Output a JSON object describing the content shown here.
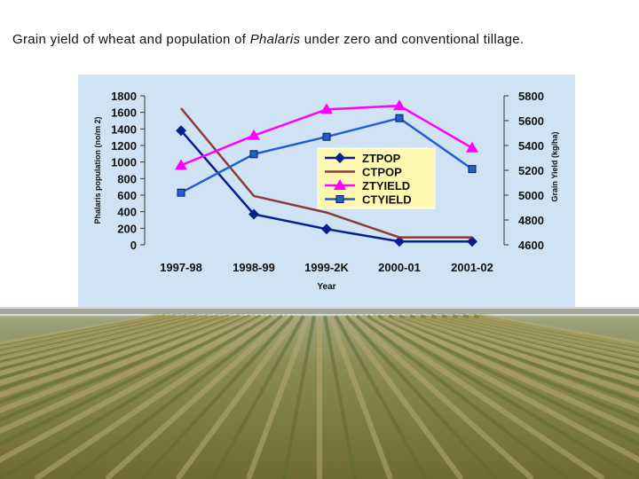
{
  "title": {
    "before": "Grain yield of wheat and population of ",
    "italic": "Phalaris",
    "after": " under zero and conventional tillage."
  },
  "chart_data": {
    "type": "line",
    "categories": [
      "1997-98",
      "1998-99",
      "1999-2K",
      "2000-01",
      "2001-02"
    ],
    "xlabel": "Year",
    "ylabel_left": "Phalaris population (no/m 2)",
    "ylabel_right": "Grain Yield (kg/ha)",
    "ylim_left": [
      0,
      1800
    ],
    "ylim_right": [
      4600,
      5800
    ],
    "yticks_left": [
      "1800",
      "1600",
      "1400",
      "1200",
      "1000",
      "800",
      "600",
      "400",
      "200",
      "0"
    ],
    "yticks_right": [
      "5800",
      "5600",
      "5400",
      "5200",
      "5000",
      "4800",
      "4600"
    ],
    "legend_position": "center-right",
    "grid": false,
    "series": [
      {
        "name": "ZTPOP",
        "axis": "left",
        "color": "#0a1e8c",
        "marker": "diamond",
        "values": [
          1380,
          370,
          190,
          40,
          40
        ]
      },
      {
        "name": "CTPOP",
        "axis": "left",
        "color": "#8a3a3a",
        "marker": "none",
        "values": [
          1650,
          590,
          390,
          90,
          90
        ]
      },
      {
        "name": "ZTYIELD",
        "axis": "right",
        "color": "#ff00ff",
        "marker": "triangle",
        "values": [
          5240,
          5480,
          5690,
          5720,
          5380
        ]
      },
      {
        "name": "CTYIELD",
        "axis": "right",
        "color": "#1f5fd0",
        "marker": "square",
        "values": [
          5020,
          5330,
          5470,
          5620,
          5210
        ]
      }
    ]
  }
}
